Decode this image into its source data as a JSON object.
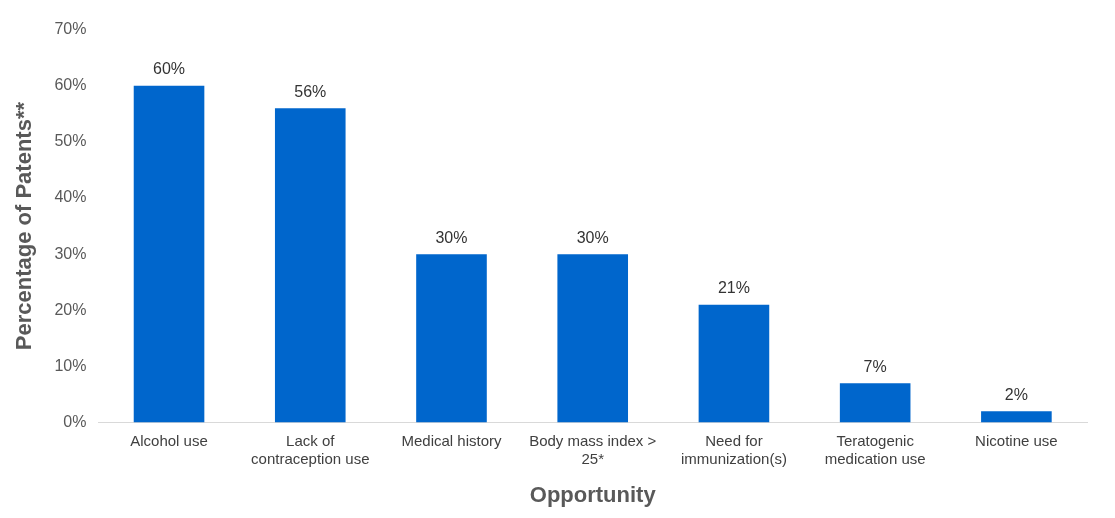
{
  "chart_data": {
    "type": "bar",
    "xlabel": "Opportunity",
    "ylabel": "Percentage of Patents**",
    "categories": [
      "Alcohol use",
      "Lack of contraception use",
      "Medical history",
      "Body mass index > 25*",
      "Need for immunization(s)",
      "Teratogenic medication use",
      "Nicotine use"
    ],
    "values": [
      60,
      56,
      30,
      30,
      21,
      7,
      2
    ],
    "value_labels": [
      "60%",
      "56%",
      "30%",
      "30%",
      "21%",
      "7%",
      "2%"
    ],
    "color": "#0066cc",
    "ylim": [
      0,
      70
    ],
    "yticks": [
      {
        "value": 0,
        "label": "0%"
      },
      {
        "value": 10,
        "label": "10%"
      },
      {
        "value": 20,
        "label": "20%"
      },
      {
        "value": 30,
        "label": "30%"
      },
      {
        "value": 40,
        "label": "40%"
      },
      {
        "value": 50,
        "label": "50%"
      },
      {
        "value": 60,
        "label": "60%"
      },
      {
        "value": 70,
        "label": "70%"
      }
    ],
    "grid": false,
    "legend": false
  }
}
